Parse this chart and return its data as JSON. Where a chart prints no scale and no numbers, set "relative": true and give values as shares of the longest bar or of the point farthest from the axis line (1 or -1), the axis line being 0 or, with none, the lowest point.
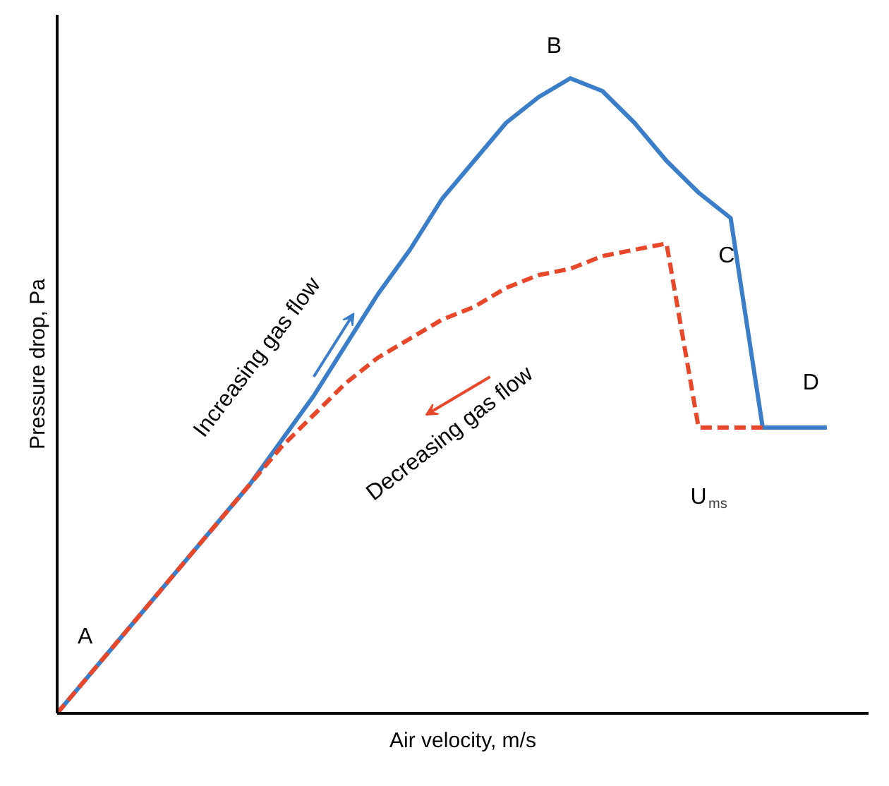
{
  "chart_data": {
    "type": "line",
    "relative": true,
    "xlabel": "Air velocity, m/s",
    "ylabel": "Pressure drop, Pa",
    "grid": false,
    "marker": "none",
    "categories": [
      null,
      null,
      null,
      null,
      null,
      null,
      null,
      null,
      null,
      null,
      null,
      null,
      null,
      null,
      null,
      null,
      null,
      null,
      null,
      null,
      null,
      null,
      null,
      null,
      null
    ],
    "series": [
      {
        "color": "#3a7dc9",
        "line_style": "solid",
        "values": [
          0,
          0.06,
          0.12,
          0.18,
          0.24,
          0.3,
          0.36,
          0.43,
          0.5,
          0.58,
          0.66,
          0.73,
          0.81,
          0.87,
          0.93,
          0.97,
          1,
          0.98,
          0.93,
          0.87,
          0.82,
          0.78,
          0.45,
          0.45,
          0.45
        ]
      },
      {
        "color": "#e8472a",
        "line_style": "dashed",
        "values": [
          0,
          0.06,
          0.12,
          0.18,
          0.24,
          0.3,
          0.36,
          0.42,
          0.47,
          0.52,
          0.56,
          0.59,
          0.62,
          0.64,
          0.67,
          0.69,
          0.7,
          0.72,
          0.73,
          0.74,
          0.45,
          0.45,
          0.45,
          null,
          null
        ]
      }
    ],
    "annotations": [
      "Increasing gas flow",
      "Decreasing gas flow",
      "A",
      "B",
      "C",
      "D",
      "U$_{ms}$"
    ]
  }
}
